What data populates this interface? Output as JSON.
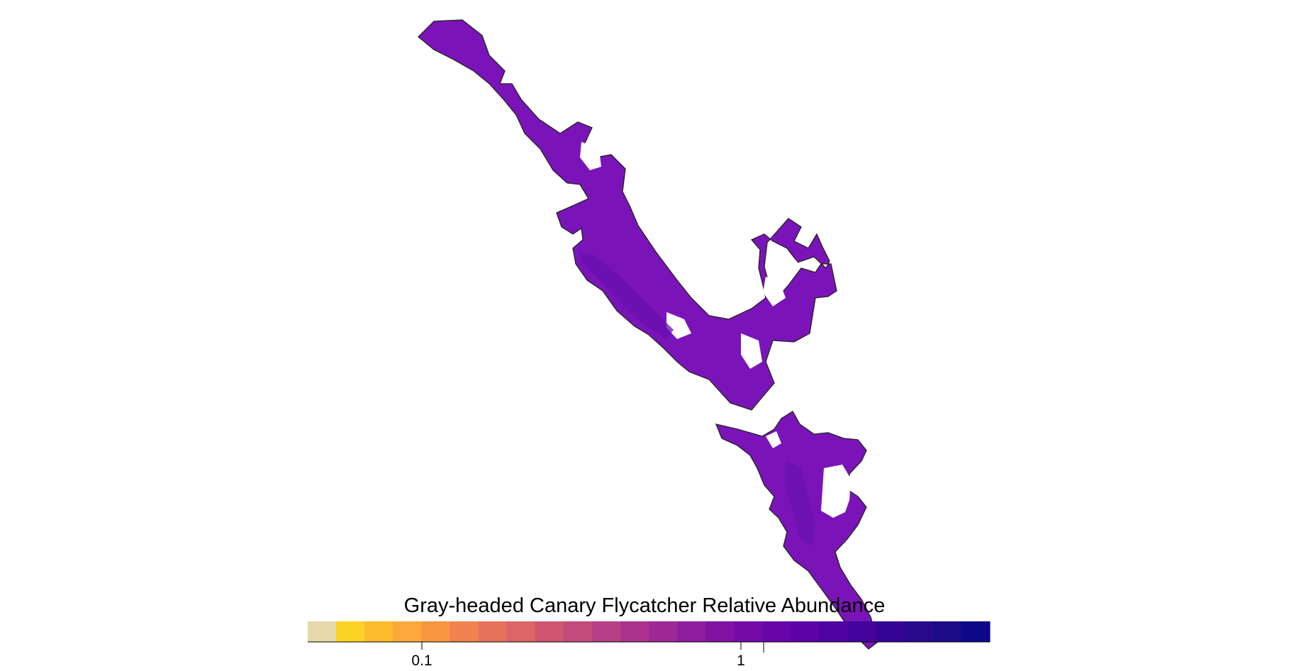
{
  "map": {
    "species_title": "Gray-headed Canary Flycatcher Relative Abundance",
    "range_fill_color": "#7a14b8",
    "range_fill_dark": "#6a0fb0",
    "outline_color": "#222222",
    "background": "#ffffff"
  },
  "legend": {
    "scale": "log",
    "bins": [
      "#e6d8a8",
      "#fbd324",
      "#fcbc2c",
      "#fba93a",
      "#f89642",
      "#f0834f",
      "#e7725c",
      "#dc6567",
      "#cf5571",
      "#c34b7b",
      "#b83f85",
      "#ab338e",
      "#9e2896",
      "#8f1d9e",
      "#8112a3",
      "#740ba7",
      "#6805a9",
      "#5c03a6",
      "#4f02a2",
      "#43039c",
      "#360495",
      "#290a8d",
      "#1b0c86",
      "#0d0887"
    ],
    "ticks": [
      {
        "label": "0.1"
      },
      {
        "label": "1"
      }
    ]
  }
}
